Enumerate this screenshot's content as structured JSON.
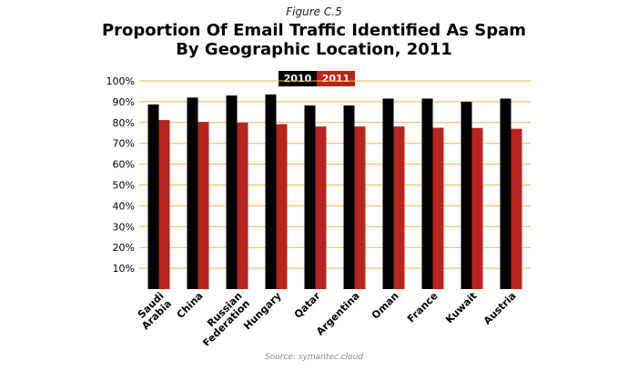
{
  "figure_label": "Figure C.5",
  "title_line1": "Proportion Of Email Traffic Identified As Spam",
  "title_line2": "By Geographic Location, 2011",
  "source": "Source: symantec.cloud",
  "colors": {
    "series_2010": "#000000",
    "series_2011": "#b5261e",
    "gridline": "#f2b84b"
  },
  "chart_data": {
    "type": "bar",
    "title": "Proportion Of Email Traffic Identified As Spam By Geographic Location, 2011",
    "xlabel": "",
    "ylabel": "",
    "ylim": [
      0,
      100
    ],
    "yticks": [
      "10%",
      "20%",
      "30%",
      "40%",
      "50%",
      "60%",
      "70%",
      "80%",
      "90%",
      "100%"
    ],
    "grid": true,
    "legend_position": "top-center",
    "categories": [
      [
        "Saudi",
        "Arabia"
      ],
      [
        "China"
      ],
      [
        "Russian",
        "Federation"
      ],
      [
        "Hungary"
      ],
      [
        "Qatar"
      ],
      [
        "Argentina"
      ],
      [
        "Oman"
      ],
      [
        "France"
      ],
      [
        "Kuwait"
      ],
      [
        "Austria"
      ]
    ],
    "series": [
      {
        "name": "2010",
        "values": [
          88.7,
          92.0,
          93.0,
          93.5,
          88.2,
          88.2,
          91.5,
          91.5,
          90.0,
          91.5
        ]
      },
      {
        "name": "2011",
        "values": [
          81.2,
          80.3,
          80.0,
          79.2,
          78.1,
          78.1,
          78.1,
          77.5,
          77.4,
          77.0
        ]
      }
    ]
  }
}
